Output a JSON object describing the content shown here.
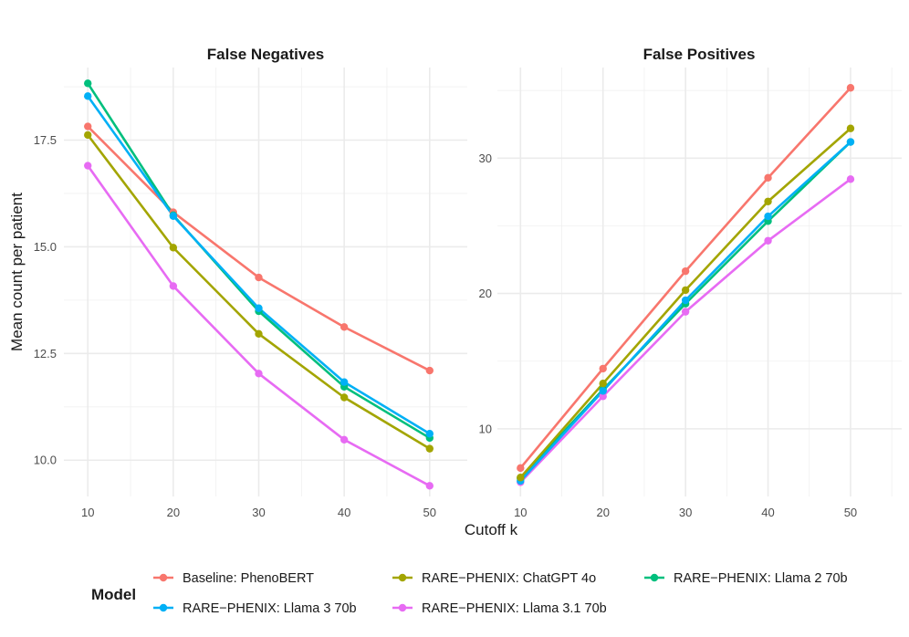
{
  "chart_data": {
    "type": "line",
    "ylabel": "Mean count per patient",
    "xlabel": "Cutoff k",
    "x": [
      10,
      20,
      30,
      40,
      50
    ],
    "legend": {
      "title": "Model",
      "position": "bottom",
      "entries": [
        {
          "name": "Baseline: PhenoBERT",
          "color": "#F8766D"
        },
        {
          "name": "RARE−PHENIX: ChatGPT 4o",
          "color": "#A3A500"
        },
        {
          "name": "RARE−PHENIX: Llama 2 70b",
          "color": "#00BF7D"
        },
        {
          "name": "RARE−PHENIX: Llama 3 70b",
          "color": "#00B0F6"
        },
        {
          "name": "RARE−PHENIX: Llama 3.1 70b",
          "color": "#E76BF3"
        }
      ]
    },
    "panels": [
      {
        "title": "False Negatives",
        "xlim": [
          7.2,
          54.4
        ],
        "ylim": [
          9.15,
          19.2
        ],
        "xticks": [
          10,
          20,
          30,
          40,
          50
        ],
        "xtick_labels": [
          "10",
          "20",
          "30",
          "40",
          "50"
        ],
        "yticks": [
          10.0,
          12.5,
          15.0,
          17.5
        ],
        "ytick_labels": [
          "10.0",
          "12.5",
          "15.0",
          "17.5"
        ],
        "series": [
          {
            "name": "Baseline: PhenoBERT",
            "values": [
              17.82,
              15.81,
              14.28,
              13.12,
              12.1
            ]
          },
          {
            "name": "RARE−PHENIX: Llama 2 70b",
            "values": [
              18.83,
              15.74,
              13.49,
              11.72,
              10.52
            ]
          },
          {
            "name": "RARE−PHENIX: Llama 3 70b",
            "values": [
              18.53,
              15.72,
              13.56,
              11.83,
              10.62
            ]
          },
          {
            "name": "RARE−PHENIX: ChatGPT 4o",
            "values": [
              17.62,
              14.98,
              12.96,
              11.47,
              10.27
            ]
          },
          {
            "name": "RARE−PHENIX: Llama 3.1 70b",
            "values": [
              16.9,
              14.08,
              12.03,
              10.48,
              9.4
            ]
          }
        ]
      },
      {
        "title": "False Positives",
        "xlim": [
          7.2,
          56.2
        ],
        "ylim": [
          5.0,
          36.7
        ],
        "xticks": [
          10,
          20,
          30,
          40,
          50
        ],
        "xtick_labels": [
          "10",
          "20",
          "30",
          "40",
          "50"
        ],
        "yticks": [
          10,
          20,
          30
        ],
        "ytick_labels": [
          "10",
          "20",
          "30"
        ],
        "series": [
          {
            "name": "RARE−PHENIX: Llama 3.1 70b",
            "values": [
              6.05,
              12.4,
              18.65,
              23.9,
              28.45
            ]
          },
          {
            "name": "RARE−PHENIX: Llama 2 70b",
            "values": [
              6.35,
              12.9,
              19.25,
              25.35,
              31.2
            ]
          },
          {
            "name": "RARE−PHENIX: Llama 3 70b",
            "values": [
              6.15,
              12.8,
              19.5,
              25.7,
              31.2
            ]
          },
          {
            "name": "RARE−PHENIX: ChatGPT 4o",
            "values": [
              6.4,
              13.35,
              20.25,
              26.8,
              32.2
            ]
          },
          {
            "name": "Baseline: PhenoBERT",
            "values": [
              7.1,
              14.45,
              21.65,
              28.55,
              35.2
            ]
          }
        ]
      }
    ]
  }
}
